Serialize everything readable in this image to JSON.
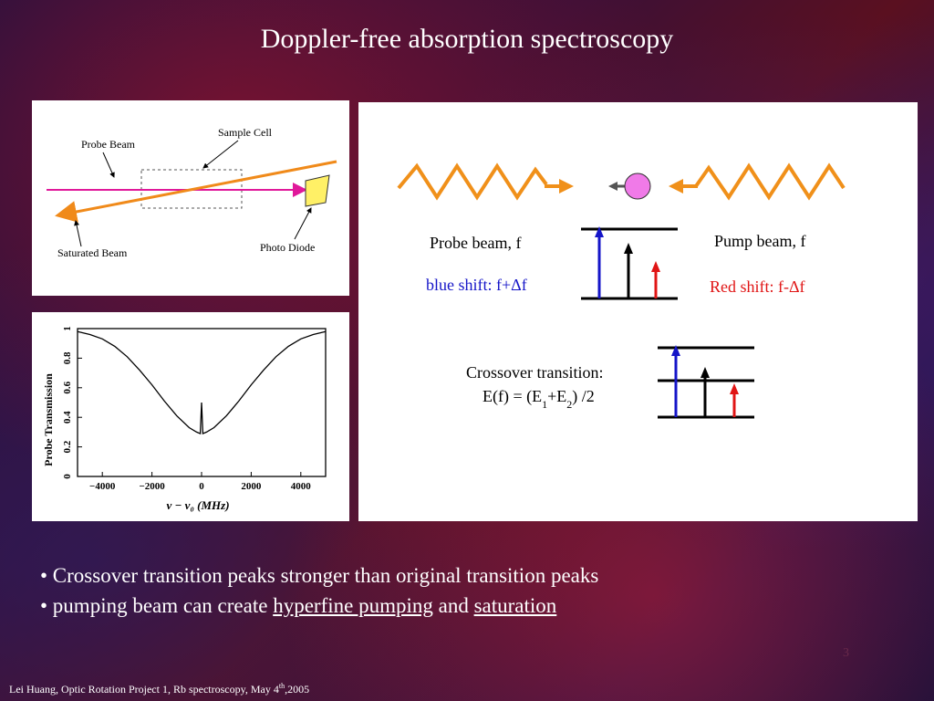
{
  "slide": {
    "title": "Doppler-free absorption spectroscopy",
    "slide_number": "3"
  },
  "setup_diagram": {
    "probe_beam_label": "Probe Beam",
    "sample_cell_label": "Sample Cell",
    "saturated_beam_label": "Saturated Beam",
    "photo_diode_label": "Photo Diode",
    "colors": {
      "probe": "#e0189a",
      "pump": "#f08a1a",
      "diode": "#fff066"
    }
  },
  "chart_data": {
    "type": "line",
    "xlabel": "ν − ν₀ (MHz)",
    "ylabel": "Probe Transmission",
    "xlim": [
      -5000,
      5000
    ],
    "ylim": [
      0,
      1
    ],
    "xticks": [
      -4000,
      -2000,
      0,
      2000,
      4000
    ],
    "xtick_labels": [
      "−4000",
      "−2000",
      "0",
      "2000",
      "4000"
    ],
    "yticks": [
      0,
      0.2,
      0.4,
      0.6,
      0.8,
      1
    ],
    "ytick_labels": [
      "0",
      "0.2",
      "0.4",
      "0.6",
      "0.8",
      "1"
    ],
    "series": [
      {
        "x": [
          -5000,
          -4500,
          -4000,
          -3500,
          -3000,
          -2500,
          -2000,
          -1500,
          -1000,
          -500,
          -200,
          -50,
          0,
          50,
          200,
          500,
          1000,
          1500,
          2000,
          2500,
          3000,
          3500,
          4000,
          4500,
          5000
        ],
        "y": [
          0.98,
          0.96,
          0.93,
          0.88,
          0.81,
          0.72,
          0.62,
          0.51,
          0.41,
          0.33,
          0.3,
          0.29,
          0.5,
          0.29,
          0.3,
          0.33,
          0.41,
          0.51,
          0.62,
          0.72,
          0.81,
          0.88,
          0.93,
          0.96,
          0.98
        ]
      }
    ]
  },
  "energy_diagram": {
    "probe_beam_label": "Probe beam, f",
    "pump_beam_label": "Pump beam, f",
    "blue_shift_label": "blue shift: f+Δf",
    "red_shift_label": "Red shift: f-Δf",
    "crossover_label": "Crossover transition:",
    "crossover_formula": "E(f) = (E1+E2) /2",
    "colors": {
      "wave": "#f0901a",
      "atom": "#f07ae8",
      "blue": "#1515c8",
      "red": "#e01515",
      "black": "#000000"
    }
  },
  "bullets": {
    "item1": "• Crossover transition peaks stronger than original transition peaks",
    "item2_prefix": "• pumping beam can create ",
    "item2_link1": "hyperfine pumping",
    "item2_mid": " and ",
    "item2_link2": "saturation"
  },
  "footer": {
    "text_before": "Lei Huang, Optic Rotation Project 1, Rb spectroscopy, May 4",
    "sup": "th",
    "text_after": ",2005"
  }
}
